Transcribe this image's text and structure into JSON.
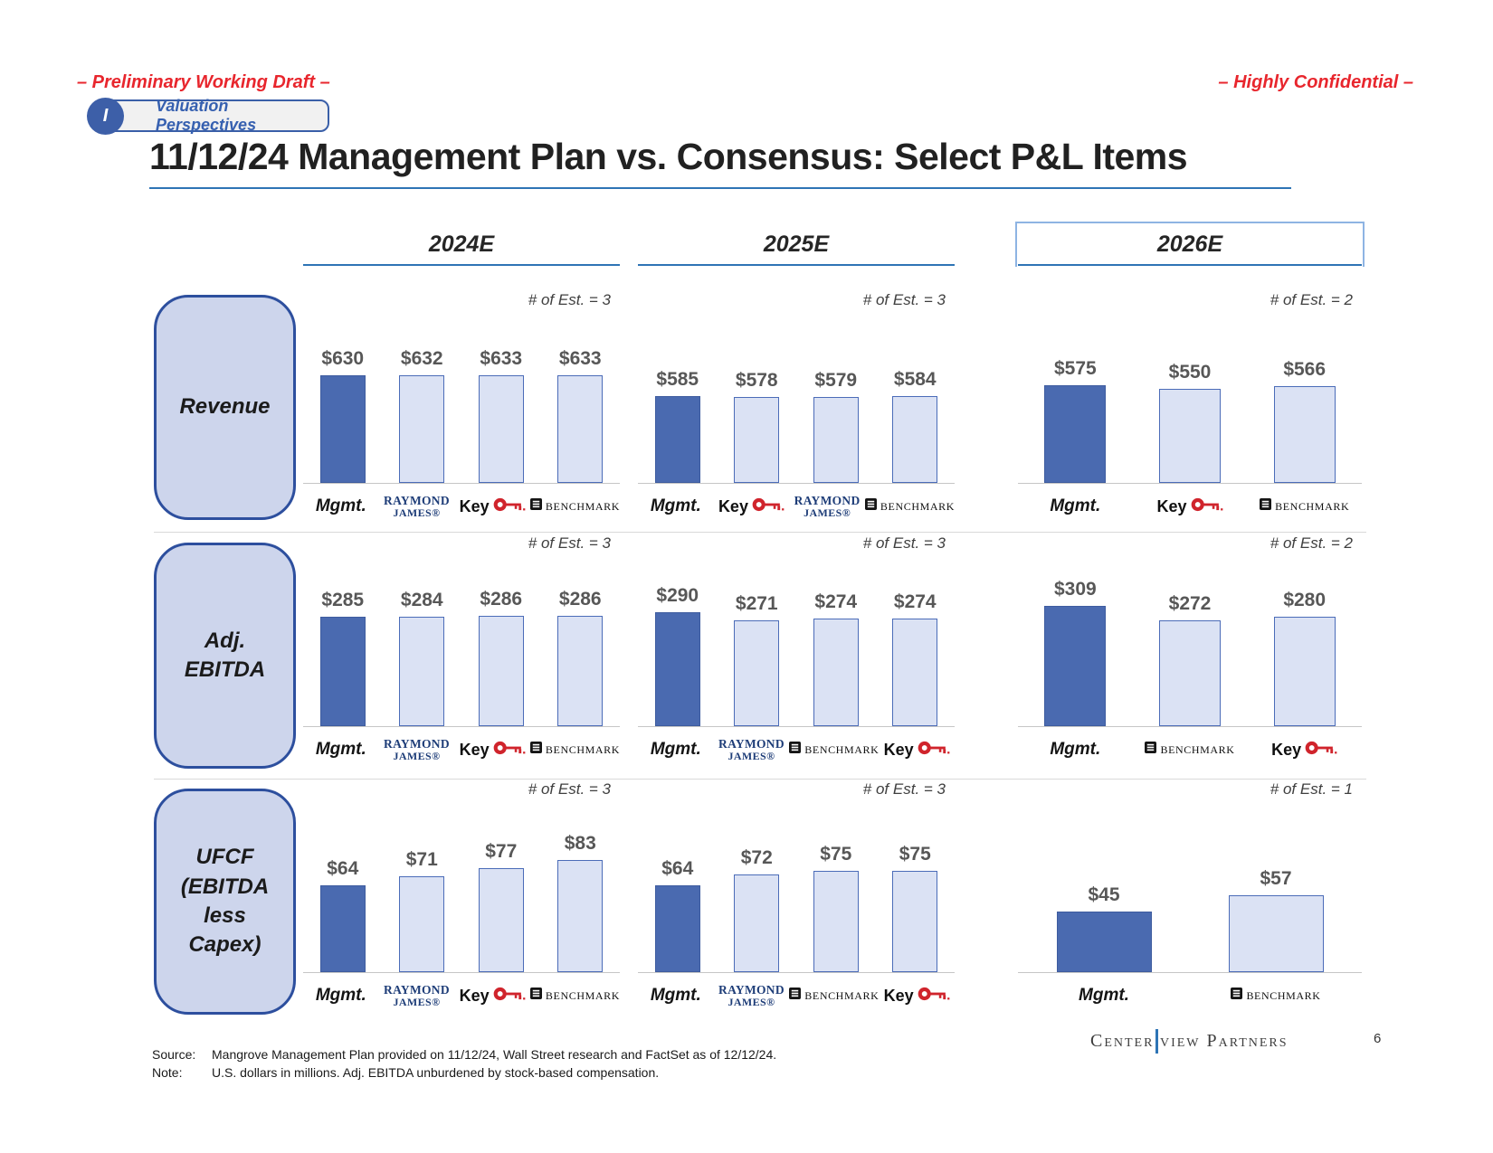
{
  "slide": {
    "draft_label": "– Preliminary Working Draft –",
    "confidential_label": "– Highly Confidential –",
    "badge": {
      "numeral": "I",
      "label": "Valuation Perspectives"
    },
    "title": "11/12/24 Management Plan vs. Consensus: Select P&L Items",
    "page_number": "6",
    "logo": {
      "part1": "Center",
      "part2": "view Partners"
    },
    "footer": {
      "source_label": "Source:",
      "source_text": "Mangrove Management Plan provided on 11/12/24, Wall Street research and FactSet as of 12/12/24.",
      "note_label": "Note:",
      "note_text": "U.S. dollars in millions. Adj. EBITDA unburdened by stock-based compensation."
    }
  },
  "columns": [
    {
      "label": "2024E"
    },
    {
      "label": "2025E"
    },
    {
      "label": "2026E",
      "boxed": true
    }
  ],
  "rows": [
    {
      "label": "Revenue"
    },
    {
      "label": "Adj.\nEBITDA"
    },
    {
      "label": "UFCF\n(EBITDA\nless\nCapex)"
    }
  ],
  "colors": {
    "accent_red": "#e8262d",
    "header_blue": "#2e74b5",
    "box_border_blue": "#2d4f9e",
    "box_fill": "#cdd5ec",
    "mgmt_bar": "#4a6ab0",
    "consensus_bar_fill": "#dbe2f4",
    "bar_border": "#4b6cb8",
    "value_label_gray": "#575757",
    "raymond_james_blue": "#1e3d78",
    "key_red": "#d0242c",
    "benchmark_black": "#151515"
  },
  "chart_data": {
    "type": "bar",
    "sources": {
      "mgmt": {
        "type": "text",
        "text": "Mgmt."
      },
      "raymond_james": {
        "type": "stacked",
        "line1": "RAYMOND",
        "line2": "JAMES®"
      },
      "key": {
        "type": "key",
        "text": "Key"
      },
      "benchmark": {
        "type": "benchmark",
        "text": "BENCHMARK"
      }
    },
    "charts": [
      {
        "id": "revenue-2024e",
        "metric": "Revenue",
        "period": "2024E",
        "est_note": "# of Est. = 3",
        "ylim": [
          0,
          690
        ],
        "bars": [
          {
            "source": "mgmt",
            "value": 630,
            "label": "$630"
          },
          {
            "source": "raymond_james",
            "value": 632,
            "label": "$632"
          },
          {
            "source": "key",
            "value": 633,
            "label": "$633"
          },
          {
            "source": "benchmark",
            "value": 633,
            "label": "$633"
          }
        ]
      },
      {
        "id": "revenue-2025e",
        "metric": "Revenue",
        "period": "2025E",
        "est_note": "# of Est. = 3",
        "ylim": [
          0,
          790
        ],
        "bars": [
          {
            "source": "mgmt",
            "value": 585,
            "label": "$585"
          },
          {
            "source": "key",
            "value": 578,
            "label": "$578"
          },
          {
            "source": "raymond_james",
            "value": 579,
            "label": "$579"
          },
          {
            "source": "benchmark",
            "value": 584,
            "label": "$584"
          }
        ]
      },
      {
        "id": "revenue-2026e",
        "metric": "Revenue",
        "period": "2026E",
        "est_note": "# of Est. = 2",
        "ylim": [
          0,
          690
        ],
        "bars": [
          {
            "source": "mgmt",
            "value": 575,
            "label": "$575"
          },
          {
            "source": "key",
            "value": 550,
            "label": "$550"
          },
          {
            "source": "benchmark",
            "value": 566,
            "label": "$566"
          }
        ]
      },
      {
        "id": "ebitda-2024e",
        "metric": "Adj. EBITDA",
        "period": "2024E",
        "est_note": "# of Est. = 3",
        "ylim": [
          0,
          305
        ],
        "bars": [
          {
            "source": "mgmt",
            "value": 285,
            "label": "$285"
          },
          {
            "source": "raymond_james",
            "value": 284,
            "label": "$284"
          },
          {
            "source": "key",
            "value": 286,
            "label": "$286"
          },
          {
            "source": "benchmark",
            "value": 286,
            "label": "$286"
          }
        ]
      },
      {
        "id": "ebitda-2025e",
        "metric": "Adj. EBITDA",
        "period": "2025E",
        "est_note": "# of Est. = 3",
        "ylim": [
          0,
          300
        ],
        "bars": [
          {
            "source": "mgmt",
            "value": 290,
            "label": "$290"
          },
          {
            "source": "raymond_james",
            "value": 271,
            "label": "$271"
          },
          {
            "source": "benchmark",
            "value": 274,
            "label": "$274"
          },
          {
            "source": "key",
            "value": 274,
            "label": "$274"
          }
        ]
      },
      {
        "id": "ebitda-2026e",
        "metric": "Adj. EBITDA",
        "period": "2026E",
        "est_note": "# of Est. = 2",
        "ylim": [
          0,
          302
        ],
        "bars": [
          {
            "source": "mgmt",
            "value": 309,
            "label": "$309"
          },
          {
            "source": "benchmark",
            "value": 272,
            "label": "$272"
          },
          {
            "source": "key",
            "value": 280,
            "label": "$280"
          }
        ]
      },
      {
        "id": "ufcf-2024e",
        "metric": "UFCF (EBITDA less Capex)",
        "period": "2024E",
        "est_note": "# of Est. = 3",
        "ylim": [
          0,
          87
        ],
        "bars": [
          {
            "source": "mgmt",
            "value": 64,
            "label": "$64"
          },
          {
            "source": "raymond_james",
            "value": 71,
            "label": "$71"
          },
          {
            "source": "key",
            "value": 77,
            "label": "$77"
          },
          {
            "source": "benchmark",
            "value": 83,
            "label": "$83"
          }
        ]
      },
      {
        "id": "ufcf-2025e",
        "metric": "UFCF (EBITDA less Capex)",
        "period": "2025E",
        "est_note": "# of Est. = 3",
        "ylim": [
          0,
          87
        ],
        "bars": [
          {
            "source": "mgmt",
            "value": 64,
            "label": "$64"
          },
          {
            "source": "raymond_james",
            "value": 72,
            "label": "$72"
          },
          {
            "source": "benchmark",
            "value": 75,
            "label": "$75"
          },
          {
            "source": "key",
            "value": 75,
            "label": "$75"
          }
        ]
      },
      {
        "id": "ufcf-2026e",
        "metric": "UFCF (EBITDA less Capex)",
        "period": "2026E",
        "est_note": "# of Est. = 1",
        "ylim": [
          0,
          87
        ],
        "bars": [
          {
            "source": "mgmt",
            "value": 45,
            "label": "$45"
          },
          {
            "source": "benchmark",
            "value": 57,
            "label": "$57"
          }
        ]
      }
    ]
  }
}
